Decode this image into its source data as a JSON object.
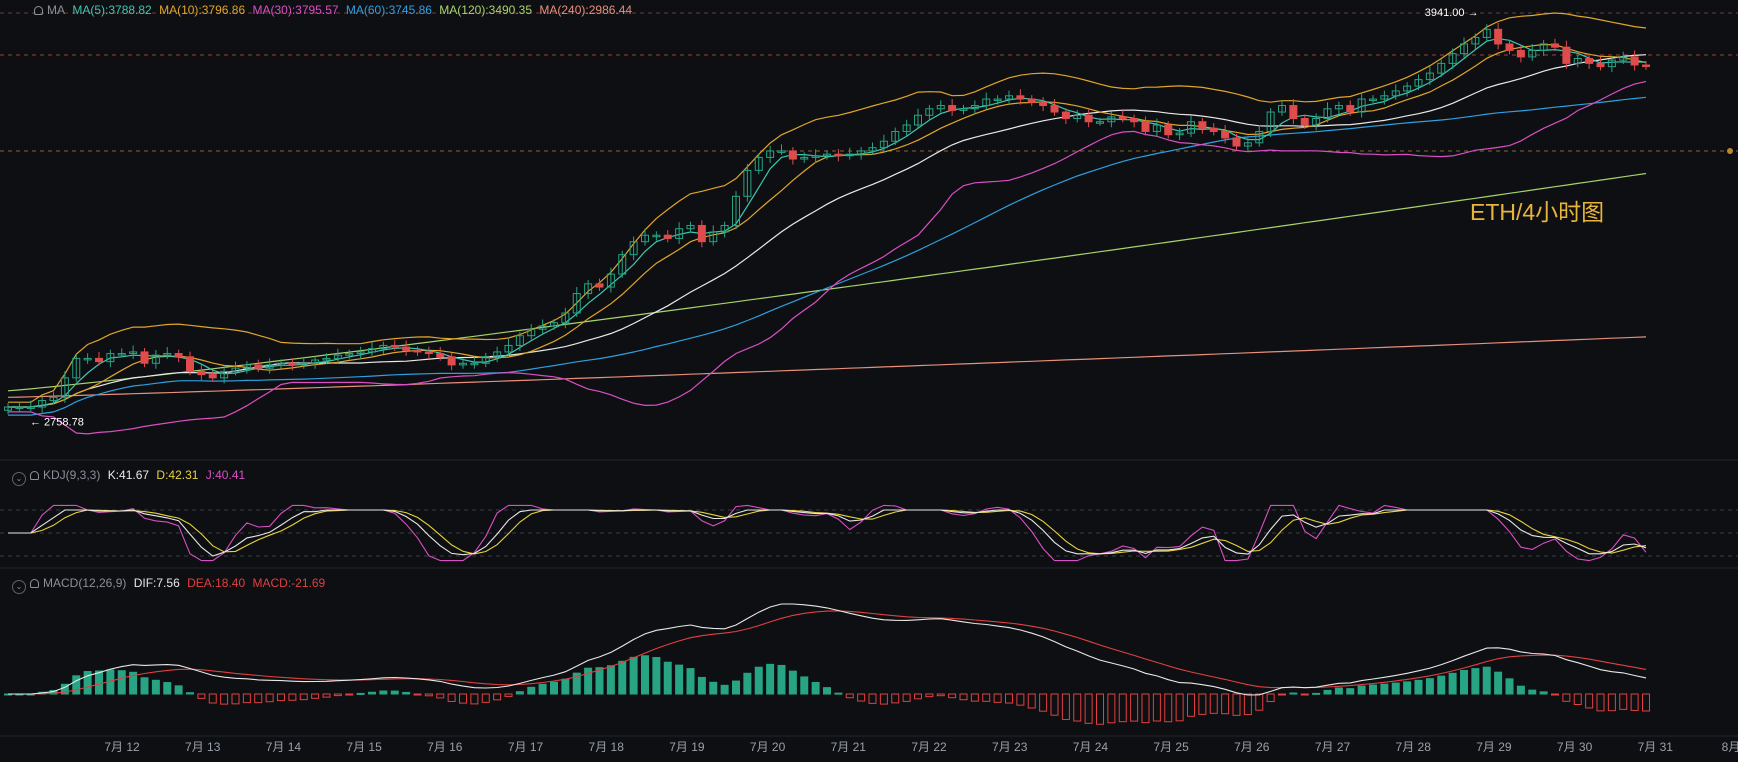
{
  "title": "ETH/4小时图",
  "colors": {
    "background": "#0e0f12",
    "up": "#26a483",
    "down": "#e04b4b",
    "ma5": "#3fc6b0",
    "ma10": "#e0a52a",
    "ma30": "#d94fc4",
    "ma60": "#2f9fe0",
    "ma120": "#a7d36b",
    "ma240": "#e88f7c",
    "boll_upper": "#e0a52a",
    "boll_mid": "#e9e9e9",
    "boll_lower": "#d94fc4",
    "kdj_k": "#e8e8e8",
    "kdj_d": "#e6d23a",
    "kdj_j": "#d94fc4",
    "dif": "#e8e8e8",
    "dea": "#e04040"
  },
  "ma_legend": {
    "label": "MA",
    "ma5": "MA(5):3788.82",
    "ma10": "MA(10):3796.86",
    "ma30": "MA(30):3795.57",
    "ma60": "MA(60):3745.86",
    "ma120": "MA(120):3490.35",
    "ma240": "MA(240):2986.44"
  },
  "kdj_legend": {
    "label": "KDJ(9,3,3)",
    "k": "K:41.67",
    "d": "D:42.31",
    "j": "J:40.41"
  },
  "macd_legend": {
    "label": "MACD(12,26,9)",
    "dif": "DIF:7.56",
    "dea": "DEA:18.40",
    "macd": "MACD:-21.69"
  },
  "chart_data": {
    "type": "candlestick",
    "title": "ETH/4小时图",
    "x_labels": [
      "7月 12",
      "7月 13",
      "7月 14",
      "7月 15",
      "7月 16",
      "7月 17",
      "7月 18",
      "7月 19",
      "7月 20",
      "7月 21",
      "7月 22",
      "7月 23",
      "7月 24",
      "7月 25",
      "7月 26",
      "7月 27",
      "7月 28",
      "7月 29",
      "7月 30",
      "7月 31",
      "8月 1"
    ],
    "price_annotations": [
      {
        "label": "3941.00",
        "value": 3941.0,
        "kind": "high"
      },
      {
        "label": "2758.78",
        "value": 2758.78,
        "kind": "low"
      }
    ],
    "price_series_close": [
      2770,
      2770,
      2770,
      2790,
      2800,
      2860,
      2920,
      2920,
      2910,
      2935,
      2935,
      2940,
      2905,
      2930,
      2935,
      2925,
      2880,
      2870,
      2860,
      2880,
      2890,
      2900,
      2890,
      2900,
      2905,
      2900,
      2905,
      2915,
      2920,
      2930,
      2935,
      2940,
      2950,
      2960,
      2955,
      2945,
      2940,
      2935,
      2925,
      2900,
      2905,
      2905,
      2925,
      2940,
      2960,
      2990,
      3010,
      3020,
      3030,
      3060,
      3120,
      3150,
      3140,
      3180,
      3240,
      3280,
      3300,
      3300,
      3290,
      3320,
      3330,
      3280,
      3310,
      3330,
      3420,
      3500,
      3540,
      3560,
      3560,
      3535,
      3540,
      3545,
      3550,
      3545,
      3550,
      3560,
      3570,
      3590,
      3620,
      3640,
      3670,
      3690,
      3700,
      3685,
      3690,
      3700,
      3720,
      3720,
      3730,
      3720,
      3710,
      3700,
      3680,
      3660,
      3670,
      3650,
      3650,
      3665,
      3660,
      3650,
      3620,
      3640,
      3610,
      3615,
      3650,
      3630,
      3620,
      3600,
      3575,
      3585,
      3620,
      3680,
      3700,
      3660,
      3640,
      3660,
      3690,
      3700,
      3680,
      3720,
      3720,
      3730,
      3745,
      3760,
      3780,
      3800,
      3830,
      3860,
      3890,
      3910,
      3935,
      3890,
      3870,
      3850,
      3870,
      3890,
      3880,
      3830,
      3845,
      3830,
      3820,
      3840,
      3850,
      3825,
      3822
    ],
    "indicators": {
      "MA5": 3788.82,
      "MA10": 3796.86,
      "MA30": 3795.57,
      "MA60": 3745.86,
      "MA120": 3490.35,
      "MA240": 2986.44,
      "K": 41.67,
      "D": 42.31,
      "J": 40.41,
      "DIF": 7.56,
      "DEA": 18.4,
      "MACD": -21.69
    }
  }
}
